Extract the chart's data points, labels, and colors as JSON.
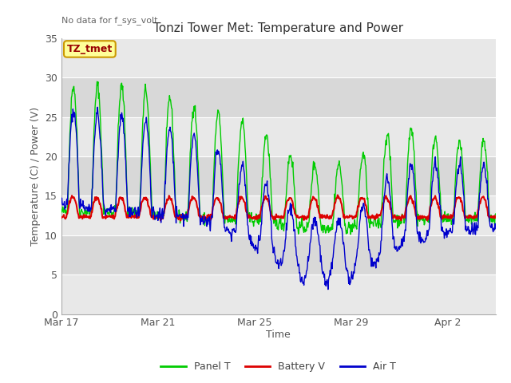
{
  "title": "Tonzi Tower Met: Temperature and Power",
  "top_left_text": "No data for f_sys_volt",
  "ylabel": "Temperature (C) / Power (V)",
  "xlabel": "Time",
  "annotation_label": "TZ_tmet",
  "ylim": [
    0,
    35
  ],
  "yticks": [
    0,
    5,
    10,
    15,
    20,
    25,
    30,
    35
  ],
  "xtick_labels": [
    "Mar 17",
    "Mar 21",
    "Mar 25",
    "Mar 29",
    "Apr 2"
  ],
  "xtick_positions": [
    0,
    4,
    8,
    12,
    16
  ],
  "panel_color": "#00cc00",
  "batt_color": "#dd0000",
  "air_color": "#0000cc",
  "fig_bg": "#ffffff",
  "plot_bg_light": "#f0f0f0",
  "plot_bg_dark": "#dcdcdc",
  "grid_color": "#ffffff",
  "title_fontsize": 11,
  "axis_fontsize": 9,
  "legend_fontsize": 9
}
